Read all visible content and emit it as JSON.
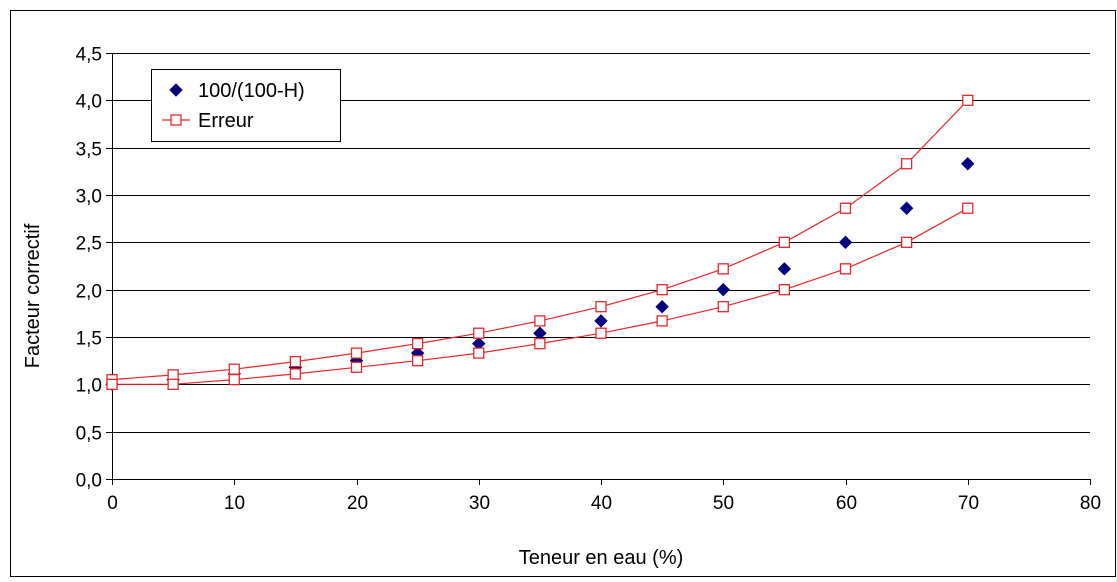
{
  "chart_data": {
    "type": "scatter",
    "xlabel": "Teneur en eau (%)",
    "ylabel": "Facteur correctif",
    "xlim": [
      0,
      80
    ],
    "ylim": [
      0,
      4.5
    ],
    "x_ticks": [
      "0",
      "10",
      "20",
      "30",
      "40",
      "50",
      "60",
      "70",
      "80"
    ],
    "y_ticks": [
      "0,0",
      "0,5",
      "1,0",
      "1,5",
      "2,0",
      "2,5",
      "3,0",
      "3,5",
      "4,0",
      "4,5"
    ],
    "grid": "horizontal",
    "legend_position": "top-left",
    "series": [
      {
        "name": "100/(100-H)",
        "marker": "diamond",
        "color": "#000080",
        "line": false,
        "x": [
          0,
          5,
          10,
          15,
          20,
          25,
          30,
          35,
          40,
          45,
          50,
          55,
          60,
          65,
          70
        ],
        "y": [
          1.0,
          1.05,
          1.11,
          1.18,
          1.25,
          1.33,
          1.43,
          1.54,
          1.67,
          1.82,
          2.0,
          2.22,
          2.5,
          2.86,
          3.33
        ]
      },
      {
        "name": "Erreur",
        "marker": "square-open",
        "color": "#e8262a",
        "line": true,
        "x": [
          0,
          5,
          10,
          15,
          20,
          25,
          30,
          35,
          40,
          45,
          50,
          55,
          60,
          65,
          70
        ],
        "y": [
          1.05,
          1.1,
          1.16,
          1.24,
          1.33,
          1.43,
          1.54,
          1.67,
          1.82,
          2.0,
          2.22,
          2.5,
          2.86,
          3.33,
          4.0
        ]
      },
      {
        "marker": "square-open",
        "color": "#e8262a",
        "line": true,
        "x": [
          0,
          5,
          10,
          15,
          20,
          25,
          30,
          35,
          40,
          45,
          50,
          55,
          60,
          65,
          70
        ],
        "y": [
          1.0,
          1.0,
          1.05,
          1.11,
          1.18,
          1.25,
          1.33,
          1.43,
          1.54,
          1.67,
          1.82,
          2.0,
          2.22,
          2.5,
          2.86
        ]
      }
    ]
  }
}
